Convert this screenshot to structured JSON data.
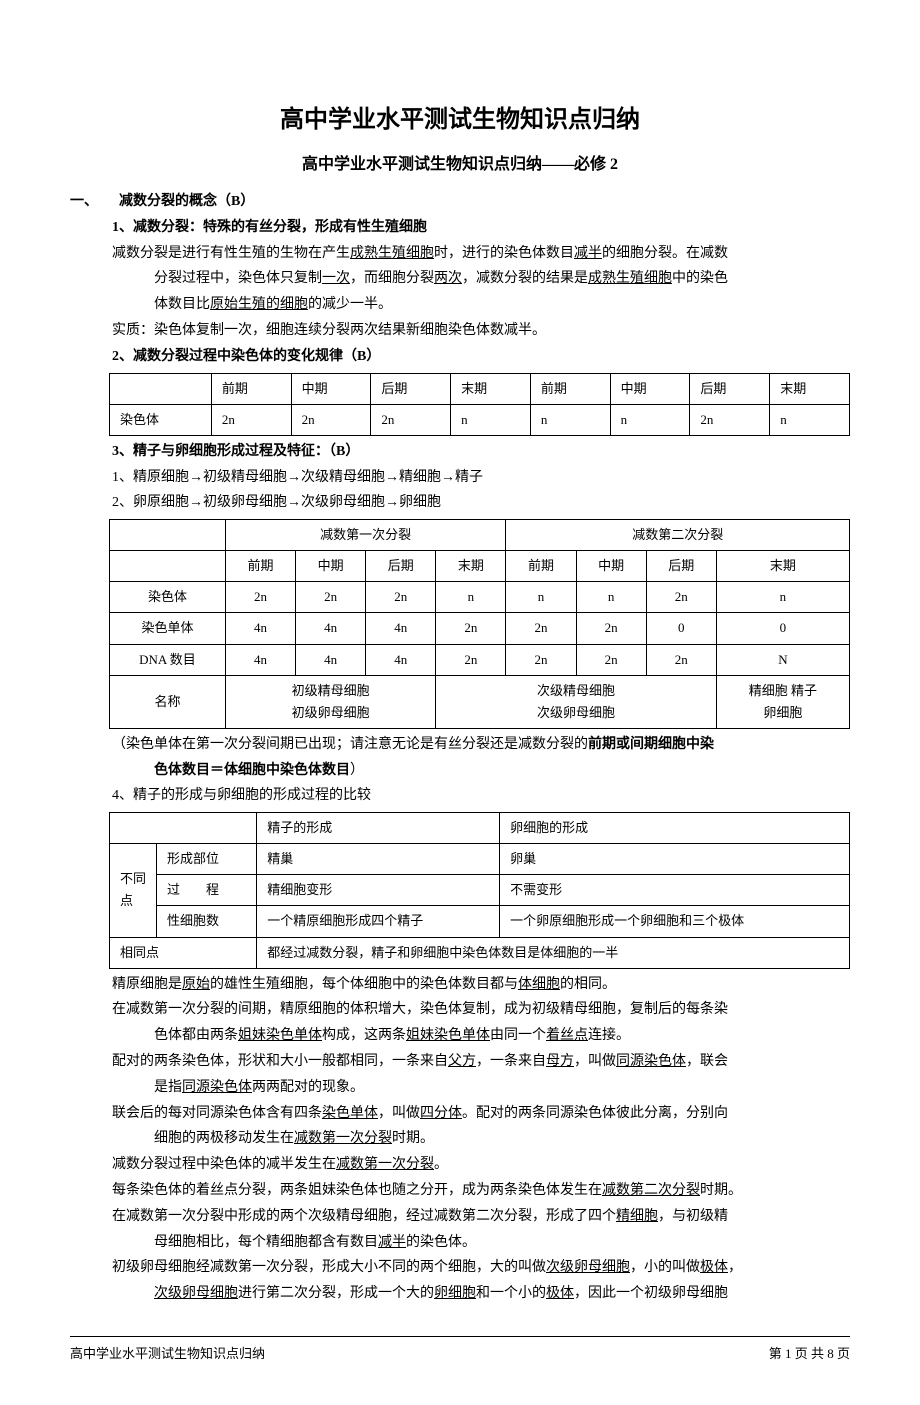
{
  "title": "高中学业水平测试生物知识点归纳",
  "subtitle": "高中学业水平测试生物知识点归纳——必修 2",
  "section1": {
    "heading": "一、　　减数分裂的概念（B）",
    "sub1_title": "1、减数分裂：特殊的有丝分裂，形成有性生殖细胞",
    "sub1_p1a": "减数分裂是进行有性生殖的生物在产生",
    "sub1_p1_u1": "成熟生殖细胞",
    "sub1_p1b": "时，进行的染色体数目",
    "sub1_p1_u2": "减半",
    "sub1_p1c": "的细胞分裂。在减数",
    "sub1_p1d": "分裂过程中，染色体只复制",
    "sub1_p1_u3": "一次",
    "sub1_p1e": "，而细胞分裂",
    "sub1_p1_u4": "两次",
    "sub1_p1f": "，减数分裂的结果是",
    "sub1_p1_u5": "成熟生殖细胞",
    "sub1_p1g": "中的染色",
    "sub1_p1h": "体数目比",
    "sub1_p1_u6": "原始生殖的细胞",
    "sub1_p1i": "的减少一半。",
    "sub1_p2": "实质：染色体复制一次，细胞连续分裂两次结果新细胞染色体数减半。",
    "sub2_title": "2、减数分裂过程中染色体的变化规律（B）"
  },
  "table1": {
    "headers": [
      "",
      "前期",
      "中期",
      "后期",
      "末期",
      "前期",
      "中期",
      "后期",
      "末期"
    ],
    "row_label": "染色体",
    "row_values": [
      "2n",
      "2n",
      "2n",
      "n",
      "n",
      "n",
      "2n",
      "n"
    ]
  },
  "section3": {
    "title": "3、精子与卵细胞形成过程及特征：（B）",
    "line1": "1、精原细胞→初级精母细胞→次级精母细胞→精细胞→精子",
    "line2": "2、卵原细胞→初级卵母细胞→次级卵母细胞→卵细胞"
  },
  "table2": {
    "div1": "减数第一次分裂",
    "div2": "减数第二次分裂",
    "sub_headers": [
      "前期",
      "中期",
      "后期",
      "末期",
      "前期",
      "中期",
      "后期",
      "末期"
    ],
    "rows": [
      {
        "label": "染色体",
        "values": [
          "2n",
          "2n",
          "2n",
          "n",
          "n",
          "n",
          "2n",
          "n"
        ]
      },
      {
        "label": "染色单体",
        "values": [
          "4n",
          "4n",
          "4n",
          "2n",
          "2n",
          "2n",
          "0",
          "0"
        ]
      },
      {
        "label": "DNA 数目",
        "values": [
          "4n",
          "4n",
          "4n",
          "2n",
          "2n",
          "2n",
          "2n",
          "N"
        ]
      }
    ],
    "name_label": "名称",
    "name_col1a": "初级精母细胞",
    "name_col1b": "初级卵母细胞",
    "name_col2a": "次级精母细胞",
    "name_col2b": "次级卵母细胞",
    "name_col3a": "精细胞 精子",
    "name_col3b": "卵细胞"
  },
  "note1a": "（染色单体在第一次分裂间期已出现；请注意无论是有丝分裂还是减数分裂的",
  "note1b": "前期或间期细胞中染",
  "note1c": "色体数目＝体细胞中染色体数目",
  "note1d": "）",
  "section4_title": "4、精子的形成与卵细胞的形成过程的比较",
  "table3": {
    "h1": "精子的形成",
    "h2": "卵细胞的形成",
    "diff_label": "不同点",
    "r1_label": "形成部位",
    "r1_v1": "精巢",
    "r1_v2": "卵巢",
    "r2_label": "过　　程",
    "r2_v1": "精细胞变形",
    "r2_v2": "不需变形",
    "r3_label": "性细胞数",
    "r3_v1": "一个精原细胞形成四个精子",
    "r3_v2": "一个卵原细胞形成一个卵细胞和三个极体",
    "same_label": "相同点",
    "same_val": "都经过减数分裂，精子和卵细胞中染色体数目是体细胞的一半"
  },
  "body_p1a": "精原细胞是",
  "body_p1_u1": "原始",
  "body_p1b": "的雄性生殖细胞，每个体细胞中的染色体数目都与",
  "body_p1_u2": "体细胞",
  "body_p1c": "的相同。",
  "body_p2a": "在减数第一次分裂的间期，精原细胞的体积增大，染色体复制，成为初级精母细胞，复制后的每条染",
  "body_p2b": "色体都由两条",
  "body_p2_u1": "姐妹染色单体",
  "body_p2c": "构成，这两条",
  "body_p2_u2": "姐妹染色单体",
  "body_p2d": "由同一个",
  "body_p2_u3": "着丝点",
  "body_p2e": "连接。",
  "body_p3a": "配对的两条染色体，形状和大小一般都相同，一条来自",
  "body_p3_u1": "父方",
  "body_p3b": "，一条来自",
  "body_p3_u2": "母方",
  "body_p3c": "，叫做",
  "body_p3_u3": "同源染色体",
  "body_p3d": "，联会",
  "body_p3e": "是指",
  "body_p3_u4": "同源染色体",
  "body_p3f": "两两配对的现象。",
  "body_p4a": "联会后的每对同源染色体含有四条",
  "body_p4_u1": "染色单体",
  "body_p4b": "，叫做",
  "body_p4_u2": "四分体",
  "body_p4c": "。配对的两条同源染色体彼此分离，分别向",
  "body_p4d": "细胞的两极移动发生在",
  "body_p4_u3": "减数第一次分裂",
  "body_p4e": "时期。",
  "body_p5a": "减数分裂过程中染色体的减半发生在",
  "body_p5_u1": "减数第一次分裂",
  "body_p5b": "。",
  "body_p6a": "每条染色体的着丝点分裂，两条姐妹染色体也随之分开，成为两条染色体发生在",
  "body_p6_u1": "减数第二次分裂",
  "body_p6b": "时期。",
  "body_p7a": "在减数第一次分裂中形成的两个次级精母细胞，经过减数第二次分裂，形成了四个",
  "body_p7_u1": "精细胞",
  "body_p7b": "，与初级精",
  "body_p7c": "母细胞相比，每个精细胞都含有数目",
  "body_p7_u2": "减半",
  "body_p7d": "的染色体。",
  "body_p8a": "初级卵母细胞经减数第一次分裂，形成大小不同的两个细胞，大的叫做",
  "body_p8_u1": "次级卵母细胞",
  "body_p8b": "，小的叫做",
  "body_p8_u2": "极体",
  "body_p8c": "，",
  "body_p8d": "",
  "body_p8_u3": "次级卵母细胞",
  "body_p8e": "进行第二次分裂，形成一个大的",
  "body_p8_u4": "卵细胞",
  "body_p8f": "和一个小的",
  "body_p8_u5": "极体",
  "body_p8g": "，因此一个初级卵母细胞",
  "footer": {
    "left": "高中学业水平测试生物知识点归纳",
    "right": "第 1 页 共 8 页"
  }
}
